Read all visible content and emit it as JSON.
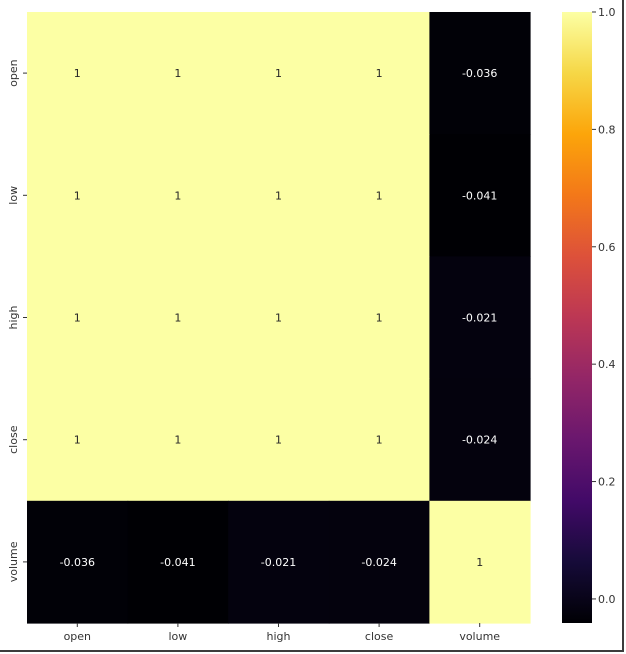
{
  "chart_data": {
    "type": "heatmap",
    "title": "",
    "xlabel": "",
    "ylabel": "",
    "x": [
      "open",
      "low",
      "high",
      "close",
      "volume"
    ],
    "y": [
      "open",
      "low",
      "high",
      "close",
      "volume"
    ],
    "values": [
      [
        1,
        1,
        1,
        1,
        -0.036
      ],
      [
        1,
        1,
        1,
        1,
        -0.041
      ],
      [
        1,
        1,
        1,
        1,
        -0.021
      ],
      [
        1,
        1,
        1,
        1,
        -0.024
      ],
      [
        -0.036,
        -0.041,
        -0.021,
        -0.024,
        1
      ]
    ],
    "cell_labels": [
      [
        "1",
        "1",
        "1",
        "1",
        "-0.036"
      ],
      [
        "1",
        "1",
        "1",
        "1",
        "-0.041"
      ],
      [
        "1",
        "1",
        "1",
        "1",
        "-0.021"
      ],
      [
        "1",
        "1",
        "1",
        "1",
        "-0.024"
      ],
      [
        "-0.036",
        "-0.041",
        "-0.021",
        "-0.024",
        "1"
      ]
    ],
    "colormap": "inferno",
    "colorbar": {
      "range": [
        -0.041,
        1
      ],
      "ticks": [
        0.0,
        0.2,
        0.4,
        0.6,
        0.8,
        1.0
      ],
      "tick_labels": [
        "0.0",
        "0.2",
        "0.4",
        "0.6",
        "0.8",
        "1.0"
      ]
    },
    "annotation_colors": {
      "on_dark": "#ffffff",
      "on_light": "#262626"
    }
  }
}
